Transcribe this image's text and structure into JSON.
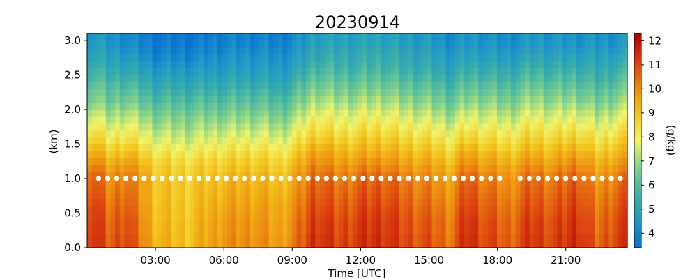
{
  "chart_data": {
    "type": "heatmap",
    "title": "20230914",
    "xlabel": "Time [UTC]",
    "ylabel": "(km)",
    "colorbar_label": "(g/kg)",
    "x_unit": "hours UTC",
    "xlim": [
      0,
      23.7
    ],
    "ylim": [
      0,
      3.1
    ],
    "clim": [
      3.4,
      12.3
    ],
    "x_ticks": [
      3,
      6,
      9,
      12,
      15,
      18,
      21
    ],
    "x_tick_labels": [
      "03:00",
      "06:00",
      "09:00",
      "12:00",
      "15:00",
      "18:00",
      "21:00"
    ],
    "y_ticks": [
      0.0,
      0.5,
      1.0,
      1.5,
      2.0,
      2.5,
      3.0
    ],
    "y_tick_labels": [
      "0.0",
      "0.5",
      "1.0",
      "1.5",
      "2.0",
      "2.5",
      "3.0"
    ],
    "colorbar_ticks": [
      4,
      5,
      6,
      7,
      8,
      9,
      10,
      11,
      12
    ],
    "colorbar_tick_labels": [
      "4",
      "5",
      "6",
      "7",
      "8",
      "9",
      "10",
      "11",
      "12"
    ],
    "colormap": [
      "#0a6fd0",
      "#1e96c8",
      "#3cb0a8",
      "#7fd08c",
      "#f2f56a",
      "#f2c31c",
      "#ec8a10",
      "#d83a10",
      "#b00000"
    ],
    "heights_km": [
      0.05,
      0.15,
      0.25,
      0.35,
      0.45,
      0.55,
      0.65,
      0.75,
      0.85,
      0.95,
      1.05,
      1.15,
      1.25,
      1.35,
      1.45,
      1.55,
      1.65,
      1.75,
      1.85,
      1.95,
      2.05,
      2.15,
      2.25,
      2.35,
      2.45,
      2.55,
      2.65,
      2.75,
      2.85,
      2.95,
      3.05
    ],
    "profile_times": [
      0.33,
      1.0,
      1.67,
      3.0,
      4.5,
      6.0,
      7.5,
      8.5,
      9.33,
      10.0,
      11.0,
      12.0,
      13.0,
      14.0,
      15.0,
      16.0,
      16.67,
      17.33,
      18.5,
      19.5,
      20.5,
      21.5,
      22.33,
      23.33
    ],
    "profiles": [
      [
        11.4,
        11.4,
        11.3,
        11.3,
        11.2,
        11.2,
        11.1,
        11.0,
        10.9,
        10.8,
        10.7,
        10.4,
        10.0,
        9.6,
        9.2,
        8.8,
        8.5,
        8.1,
        7.8,
        7.5,
        7.1,
        6.8,
        6.6,
        6.3,
        6.0,
        5.8,
        5.5,
        5.2,
        5.0,
        4.8,
        4.7
      ],
      [
        10.6,
        10.6,
        10.5,
        10.5,
        10.4,
        10.3,
        10.2,
        10.1,
        10.0,
        9.9,
        9.8,
        9.5,
        9.2,
        8.8,
        8.5,
        8.1,
        7.8,
        7.5,
        7.2,
        6.9,
        6.6,
        6.3,
        6.1,
        5.9,
        5.6,
        5.4,
        5.1,
        4.9,
        4.7,
        4.5,
        4.4
      ],
      [
        11.2,
        11.2,
        11.1,
        11.1,
        11.0,
        10.9,
        10.8,
        10.7,
        10.6,
        10.5,
        10.4,
        10.1,
        9.7,
        9.3,
        8.9,
        8.5,
        8.2,
        7.9,
        7.6,
        7.3,
        6.9,
        6.6,
        6.3,
        6.0,
        5.7,
        5.4,
        5.1,
        4.8,
        4.5,
        4.3,
        4.2
      ],
      [
        9.3,
        9.3,
        9.2,
        9.2,
        9.1,
        9.1,
        9.0,
        9.0,
        9.0,
        9.0,
        8.9,
        8.8,
        8.6,
        8.3,
        8.0,
        7.7,
        7.4,
        7.1,
        6.8,
        6.5,
        6.2,
        5.9,
        5.6,
        5.3,
        5.0,
        4.7,
        4.4,
        4.1,
        3.9,
        3.7,
        3.6
      ],
      [
        9.0,
        9.0,
        9.0,
        9.0,
        8.9,
        8.9,
        8.9,
        8.8,
        8.8,
        8.8,
        8.7,
        8.6,
        8.4,
        8.1,
        7.8,
        7.5,
        7.3,
        7.0,
        6.8,
        6.5,
        6.2,
        5.9,
        5.6,
        5.3,
        5.0,
        4.7,
        4.4,
        4.1,
        3.9,
        3.7,
        3.6
      ],
      [
        9.9,
        9.9,
        9.8,
        9.8,
        9.7,
        9.6,
        9.5,
        9.4,
        9.3,
        9.2,
        9.1,
        8.9,
        8.7,
        8.4,
        8.1,
        7.8,
        7.5,
        7.2,
        6.9,
        6.6,
        6.3,
        6.0,
        5.7,
        5.4,
        5.1,
        4.8,
        4.6,
        4.4,
        4.2,
        4.0,
        3.9
      ],
      [
        10.0,
        10.0,
        9.9,
        9.9,
        9.8,
        9.7,
        9.6,
        9.5,
        9.4,
        9.3,
        9.2,
        9.0,
        8.8,
        8.5,
        8.2,
        7.9,
        7.6,
        7.3,
        7.0,
        6.7,
        6.4,
        6.1,
        5.8,
        5.5,
        5.2,
        4.9,
        4.7,
        4.5,
        4.3,
        4.1,
        4.0
      ],
      [
        9.6,
        9.6,
        9.5,
        9.5,
        9.4,
        9.4,
        9.3,
        9.2,
        9.1,
        9.0,
        8.9,
        8.7,
        8.5,
        8.2,
        7.9,
        7.6,
        7.3,
        7.0,
        6.7,
        6.4,
        6.1,
        5.8,
        5.5,
        5.2,
        4.9,
        4.7,
        4.5,
        4.3,
        4.1,
        3.9,
        3.8
      ],
      [
        10.5,
        10.5,
        10.4,
        10.4,
        10.3,
        10.2,
        10.1,
        10.0,
        9.9,
        9.8,
        9.7,
        9.5,
        9.2,
        8.9,
        8.6,
        8.3,
        8.0,
        7.7,
        7.4,
        7.1,
        6.8,
        6.5,
        6.2,
        5.9,
        5.6,
        5.3,
        5.0,
        4.8,
        4.6,
        4.4,
        4.3
      ],
      [
        11.5,
        11.5,
        11.4,
        11.4,
        11.3,
        11.2,
        11.1,
        11.0,
        10.9,
        10.8,
        10.6,
        10.4,
        10.1,
        9.8,
        9.4,
        9.0,
        8.7,
        8.4,
        8.1,
        7.8,
        7.5,
        7.2,
        6.9,
        6.6,
        6.3,
        6.0,
        5.7,
        5.4,
        5.2,
        5.0,
        4.9
      ],
      [
        11.0,
        11.0,
        10.9,
        10.9,
        10.8,
        10.7,
        10.6,
        10.5,
        10.4,
        10.3,
        10.1,
        9.9,
        9.6,
        9.3,
        9.0,
        8.7,
        8.4,
        8.1,
        7.9,
        7.6,
        7.3,
        7.0,
        6.7,
        6.4,
        6.1,
        5.8,
        5.6,
        5.4,
        5.2,
        5.0,
        4.9
      ],
      [
        11.3,
        11.3,
        11.2,
        11.2,
        11.1,
        11.0,
        10.9,
        10.8,
        10.7,
        10.6,
        10.4,
        10.1,
        9.8,
        9.4,
        9.1,
        8.8,
        8.5,
        8.2,
        7.9,
        7.6,
        7.3,
        7.0,
        6.7,
        6.4,
        6.1,
        5.8,
        5.6,
        5.4,
        5.2,
        5.0,
        4.9
      ],
      [
        11.4,
        11.4,
        11.3,
        11.3,
        11.2,
        11.1,
        11.0,
        10.9,
        10.8,
        10.7,
        10.5,
        10.2,
        9.9,
        9.5,
        9.2,
        8.9,
        8.6,
        8.3,
        8.0,
        7.7,
        7.4,
        7.1,
        6.8,
        6.5,
        6.2,
        5.9,
        5.7,
        5.5,
        5.3,
        5.1,
        5.0
      ],
      [
        11.0,
        11.0,
        10.9,
        10.9,
        10.8,
        10.7,
        10.6,
        10.5,
        10.4,
        10.3,
        10.1,
        9.8,
        9.5,
        9.2,
        8.9,
        8.6,
        8.3,
        8.0,
        7.7,
        7.4,
        7.1,
        6.8,
        6.5,
        6.2,
        5.9,
        5.6,
        5.4,
        5.2,
        5.0,
        4.8,
        4.7
      ],
      [
        10.8,
        10.8,
        10.7,
        10.7,
        10.6,
        10.5,
        10.4,
        10.3,
        10.2,
        10.1,
        9.9,
        9.7,
        9.4,
        9.1,
        8.8,
        8.5,
        8.2,
        7.9,
        7.6,
        7.3,
        7.0,
        6.7,
        6.4,
        6.1,
        5.8,
        5.5,
        5.3,
        5.1,
        4.9,
        4.7,
        4.6
      ],
      [
        10.4,
        10.4,
        10.3,
        10.3,
        10.2,
        10.1,
        10.0,
        9.9,
        9.8,
        9.7,
        9.5,
        9.3,
        9.0,
        8.7,
        8.4,
        8.1,
        7.8,
        7.5,
        7.2,
        6.9,
        6.6,
        6.3,
        6.0,
        5.7,
        5.4,
        5.1,
        4.9,
        4.7,
        4.5,
        4.3,
        4.2
      ],
      [
        11.5,
        11.5,
        11.4,
        11.4,
        11.3,
        11.2,
        11.1,
        11.0,
        10.9,
        10.8,
        10.6,
        10.3,
        10.0,
        9.6,
        9.2,
        8.8,
        8.5,
        8.1,
        7.8,
        7.5,
        7.1,
        6.8,
        6.5,
        6.2,
        5.9,
        5.6,
        5.3,
        5.0,
        4.8,
        4.6,
        4.5
      ],
      [
        11.1,
        11.1,
        11.0,
        11.0,
        10.9,
        10.8,
        10.7,
        10.6,
        10.5,
        10.4,
        10.2,
        9.9,
        9.6,
        9.3,
        8.9,
        8.6,
        8.3,
        8.0,
        7.7,
        7.4,
        7.1,
        6.8,
        6.5,
        6.2,
        5.9,
        5.6,
        5.3,
        5.0,
        4.8,
        4.6,
        4.5
      ],
      [
        10.6,
        10.6,
        10.5,
        10.5,
        10.4,
        10.3,
        10.2,
        10.1,
        10.0,
        9.9,
        9.7,
        9.5,
        9.2,
        8.9,
        8.6,
        8.3,
        8.0,
        7.7,
        7.4,
        7.1,
        6.8,
        6.5,
        6.2,
        5.9,
        5.6,
        5.3,
        5.0,
        4.7,
        4.5,
        4.3,
        4.2
      ],
      [
        11.3,
        11.3,
        11.2,
        11.2,
        11.1,
        11.0,
        10.9,
        10.8,
        10.7,
        10.6,
        10.4,
        10.1,
        9.8,
        9.4,
        9.1,
        8.8,
        8.5,
        8.2,
        7.9,
        7.6,
        7.3,
        7.0,
        6.7,
        6.4,
        6.1,
        5.8,
        5.5,
        5.2,
        4.9,
        4.7,
        4.6
      ],
      [
        11.0,
        11.0,
        10.9,
        10.9,
        10.8,
        10.7,
        10.6,
        10.5,
        10.4,
        10.3,
        10.1,
        9.8,
        9.5,
        9.2,
        8.9,
        8.6,
        8.3,
        8.0,
        7.7,
        7.4,
        7.1,
        6.8,
        6.5,
        6.2,
        5.9,
        5.6,
        5.3,
        5.0,
        4.8,
        4.6,
        4.5
      ],
      [
        11.6,
        11.6,
        11.5,
        11.5,
        11.4,
        11.3,
        11.2,
        11.1,
        11.0,
        10.9,
        10.7,
        10.4,
        10.1,
        9.7,
        9.3,
        8.9,
        8.6,
        8.2,
        7.9,
        7.6,
        7.3,
        6.9,
        6.6,
        6.3,
        6.0,
        5.7,
        5.4,
        5.1,
        4.8,
        4.6,
        4.5
      ],
      [
        10.5,
        10.5,
        10.4,
        10.4,
        10.3,
        10.2,
        10.1,
        10.0,
        9.9,
        9.8,
        9.6,
        9.4,
        9.1,
        8.8,
        8.5,
        8.2,
        7.9,
        7.6,
        7.3,
        7.0,
        6.7,
        6.4,
        6.1,
        5.8,
        5.5,
        5.3,
        5.1,
        4.9,
        4.7,
        4.5,
        4.4
      ],
      [
        11.2,
        11.2,
        11.1,
        11.1,
        11.0,
        10.9,
        10.8,
        10.7,
        10.6,
        10.5,
        10.3,
        10.0,
        9.7,
        9.3,
        9.0,
        8.7,
        8.4,
        8.1,
        7.8,
        7.5,
        7.2,
        6.9,
        6.6,
        6.3,
        6.0,
        5.7,
        5.4,
        5.1,
        4.8,
        4.6,
        4.5
      ]
    ],
    "boundary_layer_height_km": 1.0,
    "boundary_layer_marker_color": "#ffffff",
    "boundary_layer_times": [
      0.5,
      0.9,
      1.3,
      1.7,
      2.1,
      2.5,
      2.9,
      3.3,
      3.7,
      4.1,
      4.5,
      4.9,
      5.3,
      5.7,
      6.1,
      6.5,
      6.9,
      7.3,
      7.7,
      8.1,
      8.5,
      8.9,
      9.3,
      9.7,
      10.1,
      10.5,
      10.9,
      11.3,
      11.7,
      12.1,
      12.5,
      12.9,
      13.3,
      13.7,
      14.1,
      14.5,
      14.9,
      15.3,
      15.7,
      16.1,
      16.5,
      16.9,
      17.3,
      17.7,
      18.1,
      19.0,
      19.4,
      19.8,
      20.2,
      20.6,
      21.0,
      21.4,
      21.8,
      22.2,
      22.6,
      23.0,
      23.4
    ]
  }
}
